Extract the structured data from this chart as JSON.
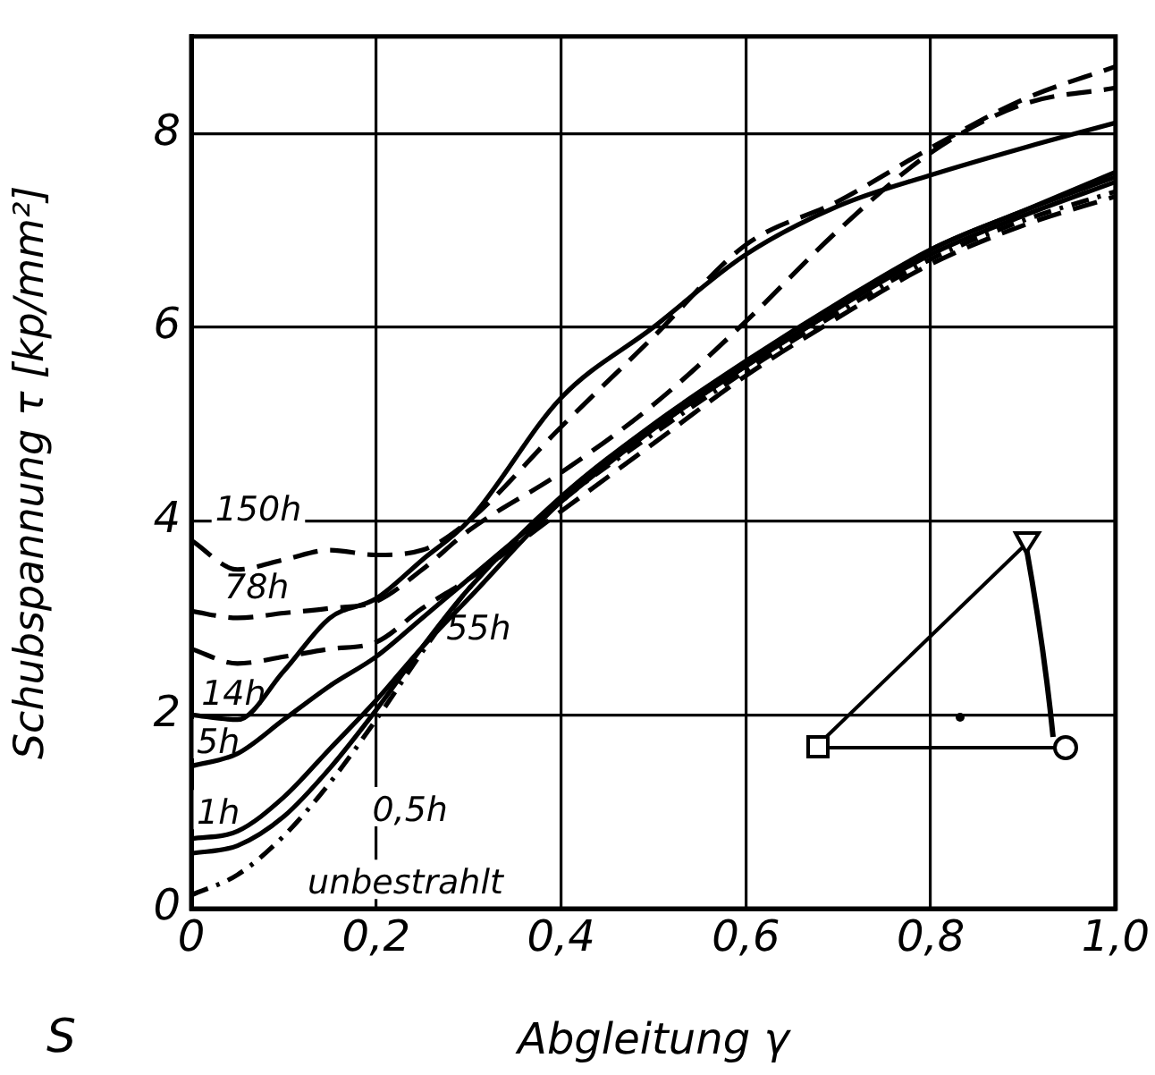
{
  "chart_data": {
    "type": "line",
    "xlabel": "Abgleitung γ",
    "ylabel": "Schubspannung τ [kp/mm²]",
    "x": [
      0,
      0.05,
      0.1,
      0.15,
      0.2,
      0.25,
      0.3,
      0.4,
      0.5,
      0.6,
      0.7,
      0.8,
      0.9,
      1.0
    ],
    "series": [
      {
        "name": "150h",
        "color": "#000000",
        "line_style": "dashed",
        "values": [
          3.8,
          3.5,
          3.6,
          3.7,
          3.65,
          3.7,
          4.0,
          4.97,
          5.9,
          6.85,
          7.3,
          7.85,
          8.35,
          8.69
        ]
      },
      {
        "name": "78h",
        "color": "#000000",
        "line_style": "dashed",
        "values": [
          3.07,
          3.0,
          3.05,
          3.1,
          3.17,
          3.5,
          3.9,
          4.5,
          5.2,
          6.06,
          7.0,
          7.8,
          8.3,
          8.47
        ]
      },
      {
        "name": "55h",
        "color": "#000000",
        "line_style": "dashed",
        "values": [
          2.68,
          2.53,
          2.6,
          2.68,
          2.75,
          3.1,
          3.4,
          4.1,
          4.8,
          5.5,
          6.1,
          6.65,
          7.05,
          7.35
        ]
      },
      {
        "name": "14h",
        "color": "#000000",
        "line_style": "solid",
        "values": [
          2.0,
          1.95,
          2.45,
          3.0,
          3.2,
          3.6,
          4.0,
          5.27,
          6.0,
          6.75,
          7.25,
          7.57,
          7.85,
          8.11
        ]
      },
      {
        "name": "5h",
        "color": "#000000",
        "line_style": "solid",
        "values": [
          1.47,
          1.6,
          1.95,
          2.3,
          2.6,
          3.0,
          3.4,
          4.2,
          4.95,
          5.6,
          6.2,
          6.8,
          7.2,
          7.6
        ]
      },
      {
        "name": "1h",
        "color": "#000000",
        "line_style": "solid",
        "values": [
          0.72,
          0.8,
          1.15,
          1.65,
          2.15,
          2.7,
          3.2,
          4.2,
          4.95,
          5.6,
          6.2,
          6.75,
          7.15,
          7.5
        ]
      },
      {
        "name": "0,5h",
        "color": "#000000",
        "line_style": "solid",
        "values": [
          0.57,
          0.65,
          0.95,
          1.45,
          2.05,
          2.7,
          3.3,
          4.25,
          5.0,
          5.65,
          6.25,
          6.8,
          7.2,
          7.55
        ]
      },
      {
        "name": "unbestrahlt",
        "color": "#000000",
        "line_style": "dotted",
        "values": [
          0.14,
          0.35,
          0.75,
          1.3,
          1.95,
          2.65,
          3.3,
          4.2,
          4.9,
          5.55,
          6.15,
          6.7,
          7.1,
          7.4
        ]
      }
    ],
    "xlim": [
      0,
      1.0
    ],
    "xticks": [
      0,
      {
        "value": 0.2,
        "label": "0,2"
      },
      {
        "value": 0.4,
        "label": "0,4"
      },
      {
        "value": 0.6,
        "label": "0,6"
      },
      {
        "value": 0.8,
        "label": "0,8"
      },
      {
        "value": 1.0,
        "label": "1,0"
      }
    ],
    "ylim": [
      0,
      9
    ],
    "yticks": [
      0,
      2,
      4,
      6,
      8
    ],
    "grid": true,
    "legend": false,
    "marker": "none",
    "annotations": [
      "S"
    ]
  }
}
